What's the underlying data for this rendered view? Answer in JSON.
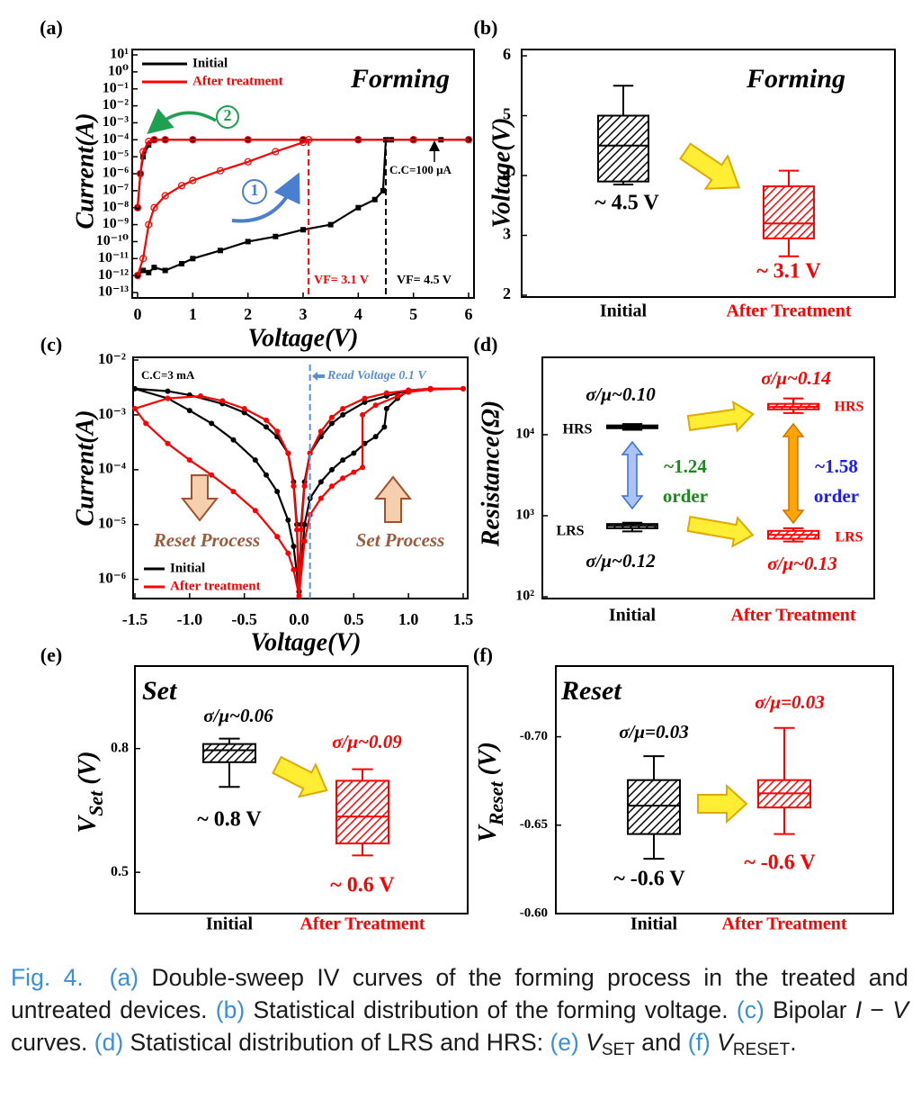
{
  "chart_data": [
    {
      "label": "(a)",
      "type": "line",
      "ylog": true,
      "title": "Forming",
      "xlabel": "Voltage(V)",
      "ylabel": "Current(A)",
      "xlim": [
        0,
        6
      ],
      "xticks": [
        0,
        1,
        2,
        3,
        4,
        5,
        6
      ],
      "ylim": [
        1e-13,
        10
      ],
      "yticks": [
        {
          "value": 10,
          "label": "10¹"
        },
        {
          "value": 1,
          "label": "10⁰"
        },
        {
          "value": 0.1,
          "label": "10⁻¹"
        },
        {
          "value": 0.01,
          "label": "10⁻²"
        },
        {
          "value": 0.001,
          "label": "10⁻³"
        },
        {
          "value": 0.0001,
          "label": "10⁻⁴"
        },
        {
          "value": 1e-05,
          "label": "10⁻⁵"
        },
        {
          "value": 1e-06,
          "label": "10⁻⁶"
        },
        {
          "value": 1e-07,
          "label": "10⁻⁷"
        },
        {
          "value": 1e-08,
          "label": "10⁻⁸"
        },
        {
          "value": 1e-09,
          "label": "10⁻⁹"
        },
        {
          "value": 1e-10,
          "label": "10⁻¹⁰"
        },
        {
          "value": 1e-11,
          "label": "10⁻¹¹"
        },
        {
          "value": 1e-12,
          "label": "10⁻¹²"
        },
        {
          "value": 1e-13,
          "label": "10⁻¹³"
        }
      ],
      "legend": "upper left",
      "series": [
        {
          "name": "Initial",
          "color": "#000000",
          "marker": "square",
          "x": [
            0,
            0.1,
            0.2,
            0.3,
            0.5,
            0.8,
            1,
            1.5,
            2,
            2.5,
            3,
            3.5,
            4,
            4.3,
            4.45,
            4.5,
            4.6,
            5,
            5.5,
            6,
            5,
            4,
            3,
            2,
            1,
            0.5,
            0.3,
            0.2,
            0.1,
            0.05,
            0
          ],
          "values": [
            1e-12,
            2e-12,
            1.5e-12,
            3e-12,
            2e-12,
            5e-12,
            1e-11,
            3e-11,
            1e-10,
            2e-10,
            5e-10,
            1e-09,
            1e-08,
            3e-08,
            1e-07,
            0.0001,
            0.0001,
            0.0001,
            0.0001,
            0.0001,
            0.0001,
            0.0001,
            0.0001,
            0.0001,
            0.0001,
            0.0001,
            0.0001,
            5e-05,
            1e-05,
            1e-06,
            1e-08
          ]
        },
        {
          "name": "After treatment",
          "color": "#ff0000",
          "marker": "open-circle",
          "x": [
            0,
            0.1,
            0.2,
            0.3,
            0.5,
            0.8,
            1,
            1.5,
            2,
            2.5,
            3,
            3.1,
            4,
            5,
            6,
            5,
            4,
            3,
            2,
            1,
            0.5,
            0.3,
            0.2,
            0.1,
            0.05,
            0
          ],
          "values": [
            1e-12,
            1e-11,
            1e-09,
            1e-08,
            5e-08,
            2e-07,
            4e-07,
            1.5e-06,
            5e-06,
            2e-05,
            7e-05,
            0.0001,
            0.0001,
            0.0001,
            0.0001,
            0.0001,
            0.0001,
            0.0001,
            0.0001,
            0.0001,
            0.0001,
            0.0001,
            8e-05,
            2e-05,
            1e-06,
            1e-08
          ]
        }
      ],
      "vlines": [
        {
          "x": 3.1,
          "color": "#ff0000",
          "label": "VF= 3.1 V"
        },
        {
          "x": 4.5,
          "color": "#000000",
          "label": "VF= 4.5 V"
        }
      ],
      "annotations": [
        "C.C=100 μA",
        "2",
        "1"
      ]
    },
    {
      "label": "(b)",
      "type": "box",
      "title": "Forming",
      "ylabel": "Voltage(V)",
      "ylim": [
        2,
        6
      ],
      "yticks": [
        2,
        3,
        4,
        5,
        6
      ],
      "categories": [
        "Initial",
        "After Treatment"
      ],
      "boxes": [
        {
          "color": "#000000",
          "min": 3.85,
          "q1": 3.9,
          "median": 4.5,
          "q3": 5.0,
          "max": 5.5,
          "label": "~ 4.5 V"
        },
        {
          "color": "#ff0000",
          "min": 2.65,
          "q1": 2.95,
          "median": 3.2,
          "q3": 3.82,
          "max": 4.08,
          "label": "~ 3.1 V"
        }
      ]
    },
    {
      "label": "(c)",
      "type": "line",
      "ylog": true,
      "xlabel": "Voltage(V)",
      "ylabel": "Current(A)",
      "xlim": [
        -1.5,
        1.5
      ],
      "xticks": [
        -1.5,
        {
          "value": -1,
          "label": "-1.0"
        },
        -0.5,
        {
          "value": 0,
          "label": "0.0"
        },
        0.5,
        {
          "value": 1,
          "label": "1.0"
        },
        1.5
      ],
      "ylim": [
        5e-07,
        0.01
      ],
      "yticks": [
        {
          "value": 0.01,
          "label": "10⁻²"
        },
        {
          "value": 0.001,
          "label": "10⁻³"
        },
        {
          "value": 0.0001,
          "label": "10⁻⁴"
        },
        {
          "value": 1e-05,
          "label": "10⁻⁵"
        },
        {
          "value": 1e-06,
          "label": "10⁻⁶"
        }
      ],
      "legend": "lower left",
      "series": [
        {
          "name": "Initial",
          "color": "#000000",
          "marker": "dot",
          "x": [
            0,
            0.05,
            0.1,
            0.2,
            0.3,
            0.4,
            0.5,
            0.6,
            0.7,
            0.78,
            0.8,
            0.9,
            1.0,
            1.2,
            1.5,
            1.2,
            1.0,
            0.8,
            0.6,
            0.4,
            0.3,
            0.2,
            0.1,
            0.05,
            0.02,
            0,
            -0.02,
            -0.05,
            -0.1,
            -0.2,
            -0.3,
            -0.5,
            -0.7,
            -1.0,
            -1.2,
            -1.5,
            -1.2,
            -1.0,
            -0.8,
            -0.6,
            -0.4,
            -0.3,
            -0.2,
            -0.1,
            -0.05,
            0
          ],
          "values": [
            6e-07,
            1e-05,
            3e-05,
            6e-05,
            0.0001,
            0.00015,
            0.0002,
            0.0003,
            0.0004,
            0.0006,
            0.0013,
            0.002,
            0.0028,
            0.003,
            0.003,
            0.003,
            0.0028,
            0.0022,
            0.0017,
            0.001,
            0.0007,
            0.0004,
            0.0002,
            6e-05,
            1e-05,
            6e-07,
            1e-05,
            6e-05,
            0.0002,
            0.0004,
            0.0006,
            0.0011,
            0.0016,
            0.0023,
            0.0027,
            0.003,
            0.002,
            0.0012,
            0.0007,
            0.00035,
            0.00015,
            8e-05,
            4e-05,
            1.2e-05,
            4e-06,
            6e-07
          ]
        },
        {
          "name": "After treatment",
          "color": "#ff0000",
          "marker": "dot",
          "x": [
            0,
            0.05,
            0.1,
            0.2,
            0.3,
            0.4,
            0.5,
            0.58,
            0.58,
            0.7,
            0.9,
            1.0,
            1.2,
            1.5,
            1.2,
            1.0,
            0.8,
            0.6,
            0.4,
            0.3,
            0.2,
            0.1,
            0.05,
            0.02,
            0,
            -0.02,
            -0.05,
            -0.1,
            -0.2,
            -0.3,
            -0.5,
            -0.7,
            -0.9,
            -1.2,
            -1.5,
            -1.4,
            -1.2,
            -1.0,
            -0.8,
            -0.6,
            -0.4,
            -0.2,
            -0.1,
            -0.05,
            0
          ],
          "values": [
            5e-07,
            5e-06,
            1.5e-05,
            3e-05,
            5e-05,
            7e-05,
            9e-05,
            0.00011,
            0.001,
            0.0015,
            0.0022,
            0.0026,
            0.0029,
            0.003,
            0.003,
            0.0028,
            0.0025,
            0.002,
            0.0013,
            0.0009,
            0.0005,
            0.0002,
            5e-05,
            8e-06,
            5e-07,
            8e-06,
            5e-05,
            0.0002,
            0.0005,
            0.0008,
            0.0013,
            0.0018,
            0.0022,
            0.002,
            0.0013,
            0.0007,
            0.0003,
            0.00015,
            8e-05,
            4e-05,
            1.8e-05,
            6e-06,
            3e-06,
            1.5e-06,
            5e-07
          ]
        }
      ],
      "vlines": [
        {
          "x": 0.1,
          "color": "#5b8fd0",
          "label": "Read Voltage 0.1 V"
        }
      ],
      "annotations": [
        "C.C=3 mA",
        "Reset Process",
        "Set Process"
      ]
    },
    {
      "label": "(d)",
      "type": "box",
      "ylog": true,
      "ylabel": "Resistance(Ω)",
      "ylim": [
        100,
        90000
      ],
      "yticks": [
        {
          "value": 100,
          "label": "10²"
        },
        {
          "value": 1000,
          "label": "10³"
        },
        {
          "value": 10000,
          "label": "10⁴"
        }
      ],
      "categories": [
        "Initial",
        "After Treatment"
      ],
      "boxes": [
        {
          "category": 0,
          "state": "HRS",
          "color": "#000000",
          "min": 11500,
          "q1": 12000,
          "median": 12500,
          "q3": 13000,
          "max": 13500,
          "cv": "σ/μ~0.10"
        },
        {
          "category": 0,
          "state": "LRS",
          "color": "#000000",
          "min": 640,
          "q1": 700,
          "median": 750,
          "q3": 790,
          "max": 820,
          "cv": "σ/μ~0.12"
        },
        {
          "category": 1,
          "state": "HRS",
          "color": "#ff0000",
          "min": 18500,
          "q1": 20500,
          "median": 22000,
          "q3": 24000,
          "max": 28000,
          "cv": "σ/μ~0.14"
        },
        {
          "category": 1,
          "state": "LRS",
          "color": "#ff0000",
          "min": 480,
          "q1": 520,
          "median": 580,
          "q3": 650,
          "max": 700,
          "cv": "σ/μ~0.13"
        }
      ],
      "ratios": [
        {
          "text": "~1.24",
          "unit": "order",
          "color": "#1a8a1a"
        },
        {
          "text": "~1.58",
          "unit": "order",
          "color": "#1a1aff"
        }
      ]
    },
    {
      "label": "(e)",
      "type": "box",
      "title": "Set",
      "ylabel": [
        {
          "text": "V"
        },
        {
          "text": "Set",
          "sub": true
        },
        {
          "text": " (V)"
        }
      ],
      "ylim": [
        0.4,
        1.0
      ],
      "yticks": [
        0.5,
        0.8
      ],
      "categories": [
        "Initial",
        "After Treatment"
      ],
      "boxes": [
        {
          "color": "#000000",
          "min": 0.707,
          "q1": 0.767,
          "median": 0.796,
          "q3": 0.811,
          "max": 0.824,
          "cv": "σ/μ~0.06",
          "label": "~ 0.8 V"
        },
        {
          "color": "#ff0000",
          "min": 0.541,
          "q1": 0.57,
          "median": 0.635,
          "q3": 0.722,
          "max": 0.75,
          "cv": "σ/μ~0.09",
          "label": "~ 0.6 V"
        }
      ]
    },
    {
      "label": "(f)",
      "type": "box",
      "title": "Reset",
      "ylabel": [
        {
          "text": "V"
        },
        {
          "text": "Reset",
          "sub": true
        },
        {
          "text": " (V)"
        }
      ],
      "ylim": [
        -0.6,
        -0.74
      ],
      "yticks": [
        {
          "value": -0.7,
          "label": "-0.70"
        },
        {
          "value": -0.65,
          "label": "-0.65"
        },
        {
          "value": -0.6,
          "label": "-0.60"
        }
      ],
      "categories": [
        "Initial",
        "After Treatment"
      ],
      "boxes": [
        {
          "color": "#000000",
          "min": -0.689,
          "q1": -0.6755,
          "median": -0.661,
          "q3": -0.645,
          "max": -0.631,
          "cv": "σ/μ=0.03",
          "label": "~ -0.6 V"
        },
        {
          "color": "#ff0000",
          "min": -0.705,
          "q1": -0.6755,
          "median": -0.668,
          "q3": -0.66,
          "max": -0.645,
          "cv": "σ/μ=0.03",
          "label": "~ -0.6 V"
        }
      ]
    }
  ],
  "caption": [
    {
      "text": "Fig. 4.",
      "color": "#3a8fd9"
    },
    {
      "text": "  (a)",
      "color": "#3a8fd9"
    },
    {
      "text": " Double-sweep IV curves of the forming process in the treated and untreated devices. "
    },
    {
      "text": "(b)",
      "color": "#3a8fd9"
    },
    {
      "text": " Statistical distribution of the forming voltage. "
    },
    {
      "text": "(c)",
      "color": "#3a8fd9"
    },
    {
      "text": " Bipolar "
    },
    {
      "text": "I",
      "italic": true
    },
    {
      "text": " − "
    },
    {
      "text": "V",
      "italic": true
    },
    {
      "text": " curves. "
    },
    {
      "text": "(d)",
      "color": "#3a8fd9"
    },
    {
      "text": " Statistical distribution of LRS and HRS: "
    },
    {
      "text": "(e)",
      "color": "#3a8fd9"
    },
    {
      "text": " V",
      "italic": true
    },
    {
      "text": "SET",
      "sub": true
    },
    {
      "text": " and "
    },
    {
      "text": "(f)",
      "color": "#3a8fd9"
    },
    {
      "text": " V",
      "italic": true
    },
    {
      "text": "RESET",
      "sub": true
    },
    {
      "text": "."
    }
  ]
}
